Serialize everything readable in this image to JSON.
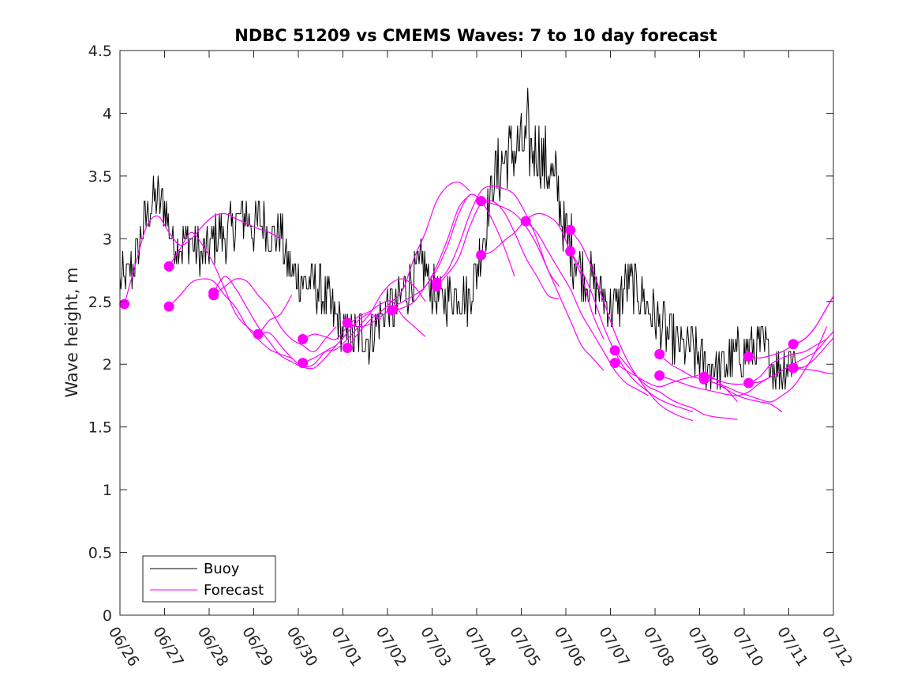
{
  "chart_data": {
    "type": "line",
    "title": "NDBC 51209 vs CMEMS Waves: 7 to 10 day forecast",
    "xlabel": "",
    "ylabel": "Wave height, m",
    "x_tick_labels": [
      "06/26",
      "06/27",
      "06/28",
      "06/29",
      "06/30",
      "07/01",
      "07/02",
      "07/03",
      "07/04",
      "07/05",
      "07/06",
      "07/07",
      "07/08",
      "07/09",
      "07/10",
      "07/11",
      "07/12"
    ],
    "xlim": [
      0,
      16
    ],
    "x_unit": "days from 06/26",
    "ylim": [
      0,
      4.5
    ],
    "y_ticks": [
      0,
      0.5,
      1,
      1.5,
      2,
      2.5,
      3,
      3.5,
      4,
      4.5
    ],
    "y_tick_labels": [
      "0",
      "0.5",
      "1",
      "1.5",
      "2",
      "2.5",
      "3",
      "3.5",
      "4",
      "4.5"
    ],
    "grid": false,
    "legend": {
      "position": "bottom-left",
      "entries": [
        "Buoy",
        "Forecast"
      ]
    },
    "colors": {
      "buoy": "#000000",
      "forecast": "#ff00ff"
    },
    "series": [
      {
        "name": "Buoy",
        "envelope": [
          [
            0.0,
            2.65
          ],
          [
            0.2,
            2.7
          ],
          [
            0.4,
            2.9
          ],
          [
            0.6,
            3.2
          ],
          [
            0.8,
            3.35
          ],
          [
            1.0,
            3.25
          ],
          [
            1.2,
            2.95
          ],
          [
            1.4,
            2.95
          ],
          [
            1.6,
            3.0
          ],
          [
            1.8,
            2.85
          ],
          [
            2.0,
            2.95
          ],
          [
            2.2,
            3.05
          ],
          [
            2.4,
            3.0
          ],
          [
            2.6,
            3.15
          ],
          [
            2.8,
            3.2
          ],
          [
            3.0,
            3.1
          ],
          [
            3.2,
            3.15
          ],
          [
            3.4,
            3.0
          ],
          [
            3.6,
            3.05
          ],
          [
            3.8,
            2.75
          ],
          [
            4.0,
            2.7
          ],
          [
            4.2,
            2.65
          ],
          [
            4.4,
            2.6
          ],
          [
            4.6,
            2.55
          ],
          [
            4.8,
            2.4
          ],
          [
            5.0,
            2.25
          ],
          [
            5.2,
            2.2
          ],
          [
            5.4,
            2.25
          ],
          [
            5.6,
            2.2
          ],
          [
            5.8,
            2.35
          ],
          [
            6.0,
            2.45
          ],
          [
            6.2,
            2.45
          ],
          [
            6.4,
            2.6
          ],
          [
            6.6,
            2.7
          ],
          [
            6.8,
            2.8
          ],
          [
            7.0,
            2.6
          ],
          [
            7.2,
            2.5
          ],
          [
            7.4,
            2.55
          ],
          [
            7.6,
            2.6
          ],
          [
            7.8,
            2.5
          ],
          [
            8.0,
            2.75
          ],
          [
            8.2,
            3.1
          ],
          [
            8.4,
            3.5
          ],
          [
            8.6,
            3.6
          ],
          [
            8.8,
            3.7
          ],
          [
            9.0,
            3.75
          ],
          [
            9.2,
            3.7
          ],
          [
            9.4,
            3.7
          ],
          [
            9.6,
            3.55
          ],
          [
            9.8,
            3.4
          ],
          [
            10.0,
            3.0
          ],
          [
            10.2,
            2.85
          ],
          [
            10.4,
            2.7
          ],
          [
            10.6,
            2.65
          ],
          [
            10.8,
            2.55
          ],
          [
            11.0,
            2.45
          ],
          [
            11.2,
            2.5
          ],
          [
            11.4,
            2.65
          ],
          [
            11.6,
            2.6
          ],
          [
            11.8,
            2.5
          ],
          [
            12.0,
            2.35
          ],
          [
            12.2,
            2.3
          ],
          [
            12.4,
            2.2
          ],
          [
            12.6,
            2.15
          ],
          [
            12.8,
            2.1
          ],
          [
            13.0,
            2.05
          ],
          [
            13.2,
            2.0
          ],
          [
            13.4,
            1.95
          ],
          [
            13.6,
            2.0
          ],
          [
            13.8,
            2.05
          ],
          [
            14.0,
            2.1
          ],
          [
            14.2,
            2.15
          ],
          [
            14.4,
            2.15
          ],
          [
            14.6,
            2.05
          ],
          [
            14.8,
            1.95
          ],
          [
            15.0,
            2.05
          ],
          [
            15.2,
            2.05
          ]
        ],
        "range": {
          "min": 1.8,
          "max": 4.2,
          "peak_day": 9.15
        }
      },
      {
        "name": "Forecast",
        "runs": [
          {
            "start": 0.1,
            "values": [
              2.48,
              2.8,
              3.1,
              3.18,
              3.05,
              2.95,
              3.0,
              3.1,
              3.18,
              3.2,
              3.16,
              3.12,
              3.08,
              3.05,
              3.0
            ]
          },
          {
            "start": 1.1,
            "values": [
              2.78,
              2.92,
              3.05,
              2.95,
              2.8,
              2.6,
              2.4,
              2.3,
              2.25,
              2.35,
              2.4,
              2.55
            ]
          },
          {
            "start": 1.1,
            "values": [
              2.46,
              2.55,
              2.65,
              2.68,
              2.66,
              2.55,
              2.45,
              2.3,
              2.2,
              2.12,
              2.08,
              2.05
            ]
          },
          {
            "start": 2.1,
            "values": [
              2.55,
              2.62,
              2.68,
              2.66,
              2.55,
              2.45,
              2.3,
              2.2,
              2.15,
              2.1,
              2.2,
              2.3
            ]
          },
          {
            "start": 2.1,
            "values": [
              2.57,
              2.7,
              2.6,
              2.45,
              2.3,
              2.18,
              2.07,
              2.02,
              1.98,
              2.0,
              2.1,
              2.15
            ]
          },
          {
            "start": 3.1,
            "values": [
              2.24,
              2.25,
              2.15,
              2.05,
              1.98,
              1.97,
              2.05,
              2.15,
              2.25,
              2.35,
              2.4,
              2.36
            ]
          },
          {
            "start": 4.1,
            "values": [
              2.2,
              2.24,
              2.22,
              2.2,
              2.3,
              2.38,
              2.42,
              2.48,
              2.5,
              2.38,
              2.3,
              2.22
            ]
          },
          {
            "start": 4.1,
            "values": [
              2.01,
              2.05,
              2.1,
              2.12,
              2.2,
              2.3,
              2.4,
              2.55,
              2.65,
              2.68,
              2.62,
              2.5
            ]
          },
          {
            "start": 5.1,
            "values": [
              2.33,
              2.3,
              2.32,
              2.38,
              2.45,
              2.5,
              2.55,
              2.62,
              2.78,
              3.0,
              3.25,
              3.35
            ]
          },
          {
            "start": 5.1,
            "values": [
              2.13,
              2.25,
              2.35,
              2.42,
              2.5,
              2.6,
              2.85,
              3.05,
              3.3,
              3.42,
              3.45,
              3.38
            ]
          },
          {
            "start": 6.1,
            "values": [
              2.43,
              2.45,
              2.5,
              2.62,
              2.75,
              2.95,
              3.2,
              3.35,
              3.3,
              3.15,
              2.95,
              2.7
            ]
          },
          {
            "start": 7.1,
            "values": [
              2.62,
              2.72,
              2.85,
              3.1,
              3.28,
              3.3,
              3.22,
              3.05,
              2.85,
              2.7,
              2.55,
              2.52
            ]
          },
          {
            "start": 7.1,
            "values": [
              2.65,
              2.75,
              2.95,
              3.2,
              3.38,
              3.42,
              3.4,
              3.35,
              3.2,
              3.0,
              2.75,
              2.62
            ]
          },
          {
            "start": 8.1,
            "values": [
              3.3,
              3.28,
              3.25,
              3.2,
              3.1,
              2.95,
              2.75,
              2.55,
              2.35,
              2.15,
              2.05,
              1.95
            ]
          },
          {
            "start": 8.1,
            "values": [
              2.87,
              2.9,
              2.98,
              3.05,
              3.15,
              3.2,
              3.18,
              3.1,
              2.9,
              2.7,
              2.4,
              2.2
            ]
          },
          {
            "start": 9.1,
            "values": [
              3.14,
              3.05,
              2.9,
              2.75,
              2.6,
              2.4,
              2.25,
              2.1,
              1.95,
              1.85,
              1.8,
              1.75
            ]
          },
          {
            "start": 10.1,
            "values": [
              3.07,
              2.95,
              2.75,
              2.5,
              2.25,
              2.05,
              1.9,
              1.78,
              1.68,
              1.62,
              1.58,
              1.55
            ]
          },
          {
            "start": 10.1,
            "values": [
              2.9,
              2.75,
              2.55,
              2.3,
              2.1,
              1.95,
              1.85,
              1.78,
              1.72,
              1.68,
              1.65,
              1.62
            ]
          },
          {
            "start": 11.1,
            "values": [
              2.11,
              2.0,
              1.9,
              1.82,
              1.78,
              1.72,
              1.68,
              1.65,
              1.6,
              1.58,
              1.57,
              1.56
            ]
          },
          {
            "start": 11.1,
            "values": [
              2.01,
              1.95,
              1.9,
              1.85,
              1.82,
              1.85,
              1.88,
              1.9,
              1.92,
              1.88,
              1.8,
              1.7
            ]
          },
          {
            "start": 12.1,
            "values": [
              2.08,
              2.0,
              1.95,
              1.9,
              1.88,
              1.85,
              1.8,
              1.75,
              1.72,
              1.7,
              1.68,
              1.62
            ]
          },
          {
            "start": 12.1,
            "values": [
              1.91,
              1.88,
              1.85,
              1.82,
              1.8,
              1.78,
              1.76,
              1.75,
              1.78,
              1.85,
              1.9,
              1.95
            ]
          },
          {
            "start": 13.1,
            "values": [
              1.9,
              1.88,
              1.85,
              1.84,
              1.85,
              1.9,
              2.0,
              2.05,
              2.08,
              2.1,
              2.15,
              2.2
            ]
          },
          {
            "start": 13.1,
            "values": [
              1.88,
              1.85,
              1.82,
              1.78,
              1.75,
              1.72,
              1.7,
              1.75,
              1.82,
              1.95,
              2.1,
              2.3
            ]
          },
          {
            "start": 14.1,
            "values": [
              2.06,
              2.05,
              2.07,
              2.1,
              2.15,
              2.2,
              2.3,
              2.45,
              2.6
            ]
          },
          {
            "start": 14.1,
            "values": [
              1.85,
              1.86,
              1.9,
              1.95,
              2.0,
              2.05,
              2.1,
              2.2,
              2.3
            ]
          },
          {
            "start": 15.1,
            "values": [
              2.16,
              2.2,
              2.3,
              2.45,
              2.6,
              2.7
            ]
          },
          {
            "start": 15.1,
            "values": [
              1.97,
              1.98,
              2.05,
              2.15,
              2.25,
              2.34
            ]
          },
          {
            "start": 15.1,
            "values": [
              1.97,
              1.96,
              1.95,
              1.93,
              1.92,
              1.9
            ]
          }
        ]
      }
    ]
  }
}
